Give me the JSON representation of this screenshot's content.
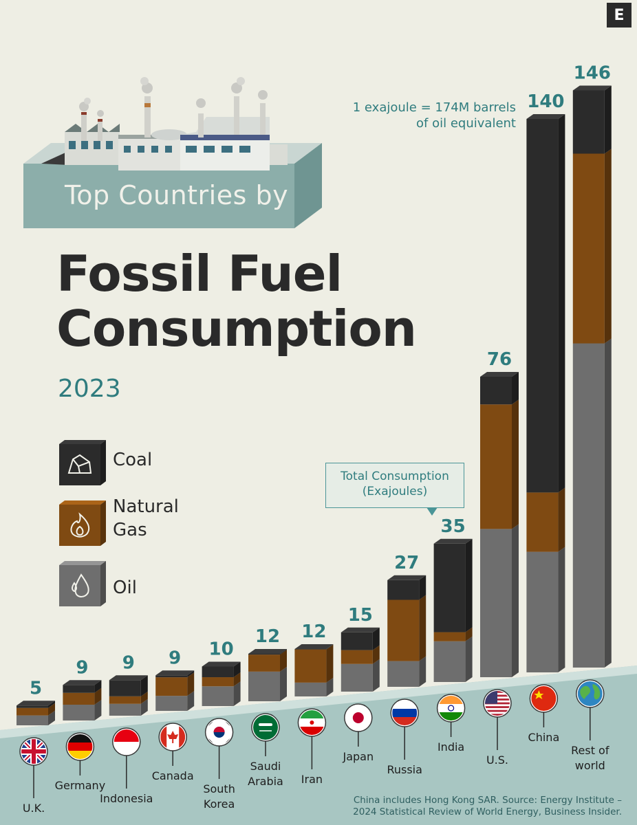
{
  "brand_letter": "E",
  "subtitle": "Top Countries by",
  "title_line1": "Fossil Fuel",
  "title_line2": "Consumption",
  "year": "2023",
  "note_line1": "1 exajoule = 174M barrels",
  "note_line2": "of oil equivalent",
  "callout_line1": "Total Consumption",
  "callout_line2": "(Exajoules)",
  "legend": [
    {
      "label": "Coal",
      "color": "#2b2b2b",
      "icon": "coal-icon"
    },
    {
      "label": "Natural Gas",
      "label_line1": "Natural",
      "label_line2": "Gas",
      "color": "#7f4a12",
      "icon": "flame-icon"
    },
    {
      "label": "Oil",
      "color": "#6e6e6e",
      "icon": "droplet-icon"
    }
  ],
  "source_line1": "China includes Hong Kong SAR. Source: Energy Institute –",
  "source_line2": "2024 Statistical Review of World Energy, Business Insider.",
  "colors": {
    "coal": "#2b2b2b",
    "gas": "#7f4a12",
    "oil": "#6e6e6e",
    "accent": "#2f7c7e",
    "ground": "#a8c6c2",
    "background": "#eeeee4"
  },
  "chart_data": {
    "type": "bar",
    "stacked": true,
    "unit": "Exajoules",
    "categories": [
      "U.K.",
      "Germany",
      "Indonesia",
      "Canada",
      "South Korea",
      "Saudi Arabia",
      "Iran",
      "Japan",
      "Russia",
      "India",
      "U.S.",
      "China",
      "Rest of world"
    ],
    "label_lines": [
      [
        "U.K."
      ],
      [
        "Germany"
      ],
      [
        "Indonesia"
      ],
      [
        "Canada"
      ],
      [
        "South",
        "Korea"
      ],
      [
        "Saudi",
        "Arabia"
      ],
      [
        "Iran"
      ],
      [
        "Japan"
      ],
      [
        "Russia"
      ],
      [
        "India"
      ],
      [
        "U.S."
      ],
      [
        "China"
      ],
      [
        "Rest of",
        "world"
      ]
    ],
    "flags": [
      "uk-flag-icon",
      "germany-flag-icon",
      "indonesia-flag-icon",
      "canada-flag-icon",
      "south-korea-flag-icon",
      "saudi-arabia-flag-icon",
      "iran-flag-icon",
      "japan-flag-icon",
      "russia-flag-icon",
      "india-flag-icon",
      "us-flag-icon",
      "china-flag-icon",
      "world-globe-icon"
    ],
    "totals": [
      5,
      9,
      9,
      9,
      10,
      12,
      12,
      15,
      27,
      35,
      76,
      140,
      146
    ],
    "series": [
      {
        "name": "Oil",
        "values": [
          2.5,
          4.0,
          3.0,
          3.8,
          5.0,
          7.5,
          3.5,
          7.0,
          6.5,
          10.3,
          37.5,
          30.5,
          82.0
        ]
      },
      {
        "name": "Natural Gas",
        "values": [
          1.9,
          3.0,
          1.9,
          4.7,
          2.3,
          4.3,
          8.4,
          3.5,
          15.5,
          2.3,
          31.5,
          15.0,
          48.0
        ]
      },
      {
        "name": "Coal",
        "values": [
          0.6,
          2.0,
          4.1,
          0.5,
          2.7,
          0.2,
          0.1,
          4.5,
          5.0,
          22.4,
          7.0,
          94.5,
          16.0
        ]
      }
    ]
  }
}
